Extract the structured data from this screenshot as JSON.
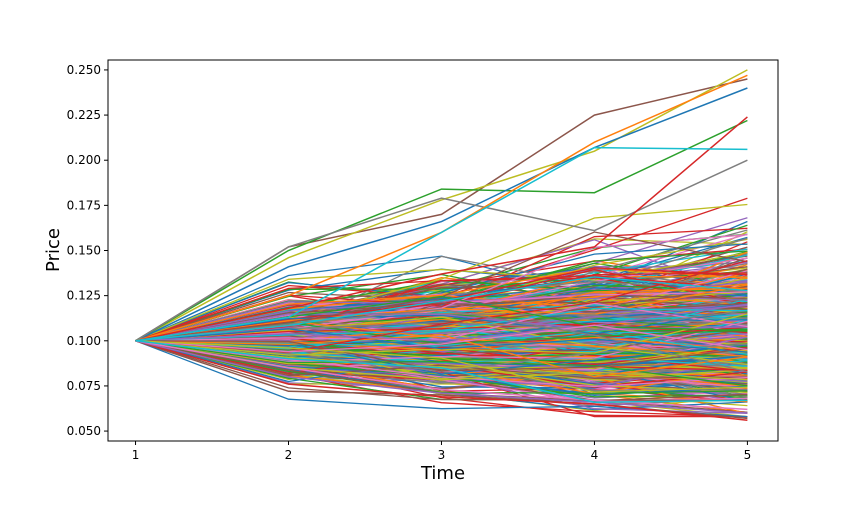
{
  "chart_data": {
    "type": "line",
    "title": "",
    "xlabel": "Time",
    "ylabel": "Price",
    "x": [
      1,
      2,
      3,
      4,
      5
    ],
    "xlim": [
      0.82,
      5.2
    ],
    "ylim": [
      0.0445,
      0.2555
    ],
    "xticks": [
      "1",
      "2",
      "3",
      "4",
      "5"
    ],
    "yticks": [
      "0.050",
      "0.075",
      "0.100",
      "0.125",
      "0.150",
      "0.175",
      "0.200",
      "0.225",
      "0.250"
    ],
    "grid": false,
    "legend": "none",
    "series_count": 1000,
    "start_value": 0.1,
    "palette": [
      "#1f77b4",
      "#ff7f0e",
      "#2ca02c",
      "#d62728",
      "#9467bd",
      "#8c564b",
      "#e377c2",
      "#7f7f7f",
      "#bcbd22",
      "#17becf"
    ],
    "highlight_series": [
      {
        "values": [
          0.1,
          0.152,
          0.17,
          0.225,
          0.245
        ],
        "color": "#8c564b"
      },
      {
        "values": [
          0.1,
          0.146,
          0.178,
          0.205,
          0.25
        ],
        "color": "#bcbd22"
      },
      {
        "values": [
          0.1,
          0.15,
          0.184,
          0.182,
          0.222
        ],
        "color": "#2ca02c"
      },
      {
        "values": [
          0.1,
          0.141,
          0.166,
          0.207,
          0.24
        ],
        "color": "#1f77b4"
      },
      {
        "values": [
          0.1,
          0.152,
          0.179,
          0.161,
          0.2
        ],
        "color": "#7f7f7f"
      },
      {
        "values": [
          0.1,
          0.125,
          0.16,
          0.21,
          0.247
        ],
        "color": "#ff7f0e"
      },
      {
        "values": [
          0.1,
          0.072,
          0.07,
          0.065,
          0.057
        ],
        "color": "#8c564b"
      },
      {
        "values": [
          0.1,
          0.076,
          0.069,
          0.065,
          0.056
        ],
        "color": "#d62728"
      },
      {
        "values": [
          0.1,
          0.08,
          0.071,
          0.066,
          0.06
        ],
        "color": "#9467bd"
      },
      {
        "values": [
          0.1,
          0.085,
          0.073,
          0.067,
          0.062
        ],
        "color": "#e377c2"
      },
      {
        "values": [
          0.1,
          0.118,
          0.137,
          0.152,
          0.224
        ],
        "color": "#d62728"
      },
      {
        "values": [
          0.1,
          0.09,
          0.085,
          0.066,
          0.067
        ],
        "color": "#17becf"
      },
      {
        "values": [
          0.1,
          0.113,
          0.16,
          0.207,
          0.206
        ],
        "color": "#17becf"
      }
    ]
  }
}
